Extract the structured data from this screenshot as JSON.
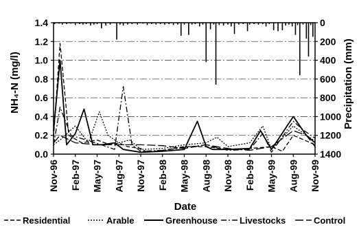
{
  "chart_data": {
    "type": "line",
    "title": "",
    "xlabel": "Date",
    "ylabel": "NH₄-N (mg/l)",
    "y2label": "Precipitation (mm)",
    "ylim": [
      0,
      1.4
    ],
    "y2lim": [
      0,
      1400
    ],
    "y2_inverted": true,
    "grid": true,
    "legend_position": "bottom",
    "x_ticks": [
      "Nov-96",
      "Feb-97",
      "May-97",
      "Aug-97",
      "Nov-97",
      "Feb-98",
      "May-98",
      "Aug-98",
      "Nov-98",
      "Feb-99",
      "May-99",
      "Aug-99",
      "Nov-99"
    ],
    "y_ticks": [
      "0.0",
      "0.2",
      "0.4",
      "0.6",
      "0.8",
      "1.0",
      "1.2",
      "1.4"
    ],
    "y2_ticks": [
      "0",
      "200",
      "400",
      "600",
      "800",
      "1000",
      "1200",
      "1400"
    ],
    "series": [
      {
        "name": "Residential",
        "style": "dash",
        "points": [
          [
            0,
            0.18
          ],
          [
            0.3,
            1.18
          ],
          [
            0.7,
            0.2
          ],
          [
            1.3,
            0.12
          ],
          [
            2.0,
            0.15
          ],
          [
            2.6,
            0.1
          ],
          [
            3.0,
            0.12
          ],
          [
            3.4,
            0.08
          ],
          [
            4.0,
            0.06
          ],
          [
            4.3,
            0.02
          ],
          [
            5.0,
            0.04
          ],
          [
            6.0,
            0.08
          ],
          [
            7.0,
            0.08
          ],
          [
            8.0,
            0.05
          ],
          [
            9.0,
            0.06
          ],
          [
            10.0,
            0.08
          ],
          [
            10.5,
            0.03
          ],
          [
            11.0,
            0.2
          ],
          [
            11.5,
            0.15
          ],
          [
            12.0,
            0.1
          ]
        ]
      },
      {
        "name": "Arable",
        "style": "dot",
        "points": [
          [
            0,
            0.1
          ],
          [
            0.3,
            0.15
          ],
          [
            1.0,
            0.3
          ],
          [
            1.6,
            0.12
          ],
          [
            2.1,
            0.45
          ],
          [
            2.5,
            0.2
          ],
          [
            3.0,
            0.12
          ],
          [
            3.5,
            0.15
          ],
          [
            4.0,
            0.05
          ],
          [
            5.0,
            0.06
          ],
          [
            6.0,
            0.1
          ],
          [
            7.0,
            0.12
          ],
          [
            7.5,
            0.18
          ],
          [
            8.0,
            0.08
          ],
          [
            9.0,
            0.12
          ],
          [
            9.6,
            0.3
          ],
          [
            10.0,
            0.05
          ],
          [
            11.0,
            0.3
          ],
          [
            11.6,
            0.2
          ],
          [
            12.0,
            0.14
          ]
        ]
      },
      {
        "name": "Greenhouse",
        "style": "solid",
        "points": [
          [
            0,
            0.25
          ],
          [
            0.3,
            1.0
          ],
          [
            0.6,
            0.1
          ],
          [
            1.0,
            0.22
          ],
          [
            1.4,
            0.48
          ],
          [
            1.8,
            0.1
          ],
          [
            2.2,
            0.1
          ],
          [
            2.8,
            0.12
          ],
          [
            3.2,
            0.05
          ],
          [
            4.0,
            0.02
          ],
          [
            5.0,
            0.03
          ],
          [
            6.0,
            0.05
          ],
          [
            6.6,
            0.35
          ],
          [
            7.0,
            0.08
          ],
          [
            7.3,
            0.05
          ],
          [
            8.0,
            0.05
          ],
          [
            9.0,
            0.06
          ],
          [
            9.5,
            0.25
          ],
          [
            10.0,
            0.05
          ],
          [
            11.0,
            0.4
          ],
          [
            11.6,
            0.2
          ],
          [
            12.0,
            0.12
          ]
        ]
      },
      {
        "name": "Livestocks",
        "style": "dashdot",
        "points": [
          [
            0,
            0.1
          ],
          [
            0.3,
            0.5
          ],
          [
            0.8,
            0.2
          ],
          [
            1.5,
            0.15
          ],
          [
            2.2,
            0.1
          ],
          [
            2.8,
            0.05
          ],
          [
            3.2,
            0.72
          ],
          [
            3.6,
            0.1
          ],
          [
            4.0,
            0.03
          ],
          [
            5.0,
            0.04
          ],
          [
            6.0,
            0.07
          ],
          [
            7.0,
            0.1
          ],
          [
            8.0,
            0.04
          ],
          [
            9.0,
            0.05
          ],
          [
            9.6,
            0.22
          ],
          [
            10.0,
            0.02
          ],
          [
            11.0,
            0.35
          ],
          [
            11.5,
            0.25
          ],
          [
            12.0,
            0.17
          ]
        ]
      },
      {
        "name": "Control",
        "style": "longdash",
        "points": [
          [
            0,
            0.12
          ],
          [
            0.3,
            0.2
          ],
          [
            1.0,
            0.12
          ],
          [
            2.0,
            0.1
          ],
          [
            3.0,
            0.1
          ],
          [
            4.0,
            0.1
          ],
          [
            5.0,
            0.09
          ],
          [
            6.0,
            0.06
          ],
          [
            7.0,
            0.1
          ],
          [
            8.0,
            0.06
          ],
          [
            9.0,
            0.04
          ],
          [
            10.0,
            0.08
          ],
          [
            11.0,
            0.25
          ],
          [
            11.6,
            0.2
          ],
          [
            12.0,
            0.08
          ]
        ]
      }
    ],
    "precipitation": [
      [
        0.05,
        15
      ],
      [
        0.25,
        10
      ],
      [
        0.4,
        20
      ],
      [
        0.6,
        15
      ],
      [
        0.8,
        10
      ],
      [
        1.0,
        25
      ],
      [
        1.2,
        15
      ],
      [
        1.35,
        20
      ],
      [
        1.5,
        15
      ],
      [
        1.7,
        30
      ],
      [
        1.85,
        20
      ],
      [
        2.0,
        15
      ],
      [
        2.2,
        60
      ],
      [
        2.4,
        30
      ],
      [
        2.6,
        20
      ],
      [
        2.9,
        180
      ],
      [
        3.05,
        20
      ],
      [
        3.2,
        30
      ],
      [
        3.4,
        20
      ],
      [
        3.6,
        15
      ],
      [
        3.85,
        20
      ],
      [
        4.1,
        10
      ],
      [
        4.3,
        25
      ],
      [
        4.5,
        15
      ],
      [
        4.7,
        20
      ],
      [
        4.9,
        15
      ],
      [
        5.1,
        20
      ],
      [
        5.3,
        15
      ],
      [
        5.5,
        25
      ],
      [
        5.7,
        20
      ],
      [
        5.85,
        140
      ],
      [
        6.0,
        20
      ],
      [
        6.2,
        130
      ],
      [
        6.35,
        20
      ],
      [
        6.5,
        15
      ],
      [
        6.7,
        40
      ],
      [
        6.85,
        20
      ],
      [
        7.0,
        420
      ],
      [
        7.2,
        70
      ],
      [
        7.35,
        20
      ],
      [
        7.45,
        660
      ],
      [
        7.6,
        25
      ],
      [
        7.8,
        30
      ],
      [
        8.0,
        20
      ],
      [
        8.15,
        40
      ],
      [
        8.3,
        120
      ],
      [
        8.5,
        20
      ],
      [
        8.7,
        15
      ],
      [
        8.9,
        90
      ],
      [
        9.0,
        20
      ],
      [
        9.2,
        15
      ],
      [
        9.4,
        20
      ],
      [
        9.6,
        15
      ],
      [
        9.75,
        40
      ],
      [
        9.9,
        15
      ],
      [
        10.1,
        80
      ],
      [
        10.3,
        90
      ],
      [
        10.5,
        80
      ],
      [
        10.65,
        30
      ],
      [
        10.8,
        20
      ],
      [
        10.95,
        40
      ],
      [
        11.1,
        130
      ],
      [
        11.2,
        25
      ],
      [
        11.3,
        560
      ],
      [
        11.45,
        20
      ],
      [
        11.6,
        170
      ],
      [
        11.7,
        360
      ],
      [
        11.8,
        25
      ],
      [
        11.9,
        150
      ]
    ]
  }
}
